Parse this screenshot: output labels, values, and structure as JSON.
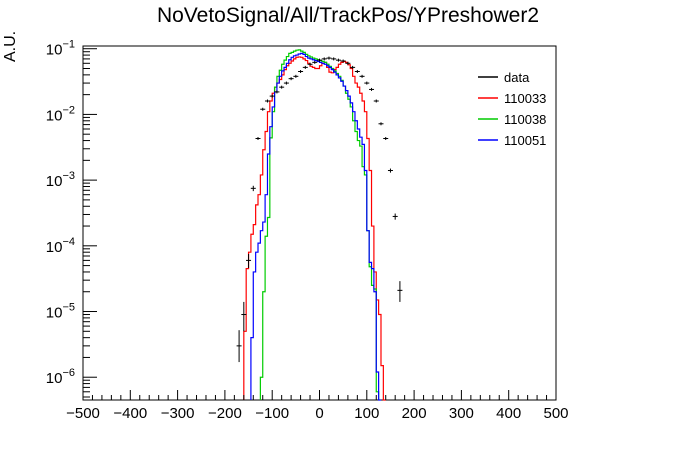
{
  "chart_data": {
    "type": "line",
    "title": "NoVetoSignal/All/TrackPos/YPreshower2",
    "xlabel": "",
    "ylabel": "A.U.",
    "xlim": [
      -500,
      500
    ],
    "ylim": [
      4.5e-07,
      0.11
    ],
    "y_scale": "log",
    "legend_position": "top-right",
    "x_ticks": [
      -500,
      -400,
      -300,
      -200,
      -100,
      0,
      100,
      200,
      300,
      400,
      500
    ],
    "x_tick_labels": [
      "−500",
      "−400",
      "−300",
      "−200",
      "−100",
      "0",
      "100",
      "200",
      "300",
      "400",
      "500"
    ],
    "y_ticks": [
      1e-06,
      1e-05,
      0.0001,
      0.001,
      0.01,
      0.1
    ],
    "y_tick_labels": [
      "10^-6",
      "10^-5",
      "10^-4",
      "10^-3",
      "10^-2",
      "10^-1"
    ],
    "colors": {
      "data": "#000000",
      "110033": "#ff0000",
      "110038": "#00cc00",
      "110051": "#0000ff"
    },
    "series": [
      {
        "name": "data",
        "style": "points",
        "x": [
          -170,
          -160,
          -150,
          -140,
          -130,
          -120,
          -110,
          -100,
          -90,
          -80,
          -70,
          -60,
          -50,
          -40,
          -30,
          -20,
          -10,
          0,
          10,
          20,
          30,
          40,
          50,
          60,
          70,
          80,
          90,
          100,
          110,
          120,
          130,
          140,
          150,
          160,
          170
        ],
        "y": [
          3e-06,
          9e-06,
          6e-05,
          0.00075,
          0.0043,
          0.012,
          0.016,
          0.019,
          0.022,
          0.026,
          0.03,
          0.035,
          0.038,
          0.045,
          0.052,
          0.058,
          0.062,
          0.067,
          0.07,
          0.072,
          0.07,
          0.067,
          0.065,
          0.06,
          0.052,
          0.045,
          0.038,
          0.03,
          0.024,
          0.016,
          0.0072,
          0.0043,
          0.0014,
          0.00028,
          2.1e-05
        ],
        "err_low": [
          1.3e-06,
          4e-06,
          1.4e-05,
          7e-05,
          0.0002,
          0.0003,
          0.0004,
          0.0004,
          0.0005,
          0.0005,
          0.0005,
          0.0006,
          0.0006,
          0.0006,
          0.0007,
          0.0007,
          0.0007,
          0.0007,
          0.0008,
          0.0008,
          0.0008,
          0.0007,
          0.0007,
          0.0007,
          0.0007,
          0.0006,
          0.0006,
          0.0005,
          0.0005,
          0.0004,
          0.0003,
          0.0002,
          0.0001,
          3e-05,
          7e-06
        ],
        "err_high": [
          2.2e-06,
          5e-06,
          1.5e-05,
          7e-05,
          0.0002,
          0.0003,
          0.0004,
          0.0004,
          0.0005,
          0.0005,
          0.0005,
          0.0006,
          0.0006,
          0.0006,
          0.0007,
          0.0007,
          0.0007,
          0.0007,
          0.0008,
          0.0008,
          0.0008,
          0.0007,
          0.0007,
          0.0007,
          0.0007,
          0.0006,
          0.0006,
          0.0005,
          0.0005,
          0.0004,
          0.0003,
          0.0002,
          0.0001,
          3e-05,
          8e-06
        ]
      },
      {
        "name": "110033",
        "style": "step",
        "edges": [
          -160,
          -155,
          -150,
          -145,
          -140,
          -135,
          -130,
          -125,
          -120,
          -115,
          -110,
          -105,
          -100,
          -95,
          -90,
          -85,
          -80,
          -75,
          -70,
          -65,
          -60,
          -55,
          -50,
          -45,
          -40,
          -35,
          -30,
          -25,
          -20,
          -15,
          -10,
          -5,
          0,
          5,
          10,
          15,
          20,
          25,
          30,
          35,
          40,
          45,
          50,
          55,
          60,
          65,
          70,
          75,
          80,
          85,
          90,
          95,
          100,
          105,
          110,
          115,
          120,
          125,
          130,
          135,
          140
        ],
        "values": [
          5e-06,
          4.5e-05,
          8e-05,
          0.00015,
          0.00021,
          0.00042,
          0.0006,
          0.0012,
          0.0029,
          0.0055,
          0.011,
          0.016,
          0.021,
          0.026,
          0.03,
          0.034,
          0.04,
          0.048,
          0.055,
          0.06,
          0.065,
          0.07,
          0.074,
          0.075,
          0.074,
          0.07,
          0.066,
          0.06,
          0.054,
          0.052,
          0.05,
          0.05,
          0.055,
          0.06,
          0.062,
          0.052,
          0.044,
          0.043,
          0.048,
          0.052,
          0.058,
          0.062,
          0.064,
          0.062,
          0.057,
          0.05,
          0.038,
          0.03,
          0.026,
          0.021,
          0.016,
          0.011,
          0.0043,
          0.0014,
          0.0002,
          4e-05,
          1.5e-05,
          9e-06,
          1.5e-06,
          3e-07
        ]
      },
      {
        "name": "110038",
        "style": "step",
        "edges": [
          -125,
          -120,
          -115,
          -110,
          -105,
          -100,
          -95,
          -90,
          -85,
          -80,
          -75,
          -70,
          -65,
          -60,
          -55,
          -50,
          -45,
          -40,
          -35,
          -30,
          -25,
          -20,
          -15,
          -10,
          -5,
          0,
          5,
          10,
          15,
          20,
          25,
          30,
          35,
          40,
          45,
          50,
          55,
          60,
          65,
          70,
          75,
          80,
          85,
          90,
          95,
          100,
          105,
          110,
          115,
          120,
          125
        ],
        "values": [
          1e-06,
          2e-05,
          0.00014,
          0.00027,
          0.0044,
          0.011,
          0.026,
          0.038,
          0.047,
          0.058,
          0.067,
          0.076,
          0.085,
          0.088,
          0.092,
          0.095,
          0.096,
          0.092,
          0.088,
          0.082,
          0.078,
          0.075,
          0.072,
          0.07,
          0.068,
          0.066,
          0.064,
          0.062,
          0.058,
          0.054,
          0.05,
          0.046,
          0.042,
          0.038,
          0.033,
          0.027,
          0.021,
          0.017,
          0.013,
          0.008,
          0.0055,
          0.004,
          0.0033,
          0.0016,
          0.0012,
          0.00017,
          4.8e-05,
          2.5e-05,
          2.2e-05,
          6e-07
        ]
      },
      {
        "name": "110051",
        "style": "step",
        "edges": [
          -145,
          -140,
          -135,
          -130,
          -125,
          -120,
          -115,
          -110,
          -105,
          -100,
          -95,
          -90,
          -85,
          -80,
          -75,
          -70,
          -65,
          -60,
          -55,
          -50,
          -45,
          -40,
          -35,
          -30,
          -25,
          -20,
          -15,
          -10,
          -5,
          0,
          5,
          10,
          15,
          20,
          25,
          30,
          35,
          40,
          45,
          50,
          55,
          60,
          65,
          70,
          75,
          80,
          85,
          90,
          95,
          100,
          105,
          110,
          115,
          120,
          125,
          130
        ],
        "values": [
          4e-06,
          4e-05,
          8e-05,
          0.00011,
          0.00017,
          0.00023,
          0.0006,
          0.0025,
          0.0065,
          0.013,
          0.022,
          0.03,
          0.038,
          0.046,
          0.052,
          0.06,
          0.068,
          0.074,
          0.078,
          0.08,
          0.083,
          0.085,
          0.082,
          0.076,
          0.072,
          0.07,
          0.068,
          0.066,
          0.064,
          0.062,
          0.06,
          0.058,
          0.055,
          0.052,
          0.048,
          0.044,
          0.04,
          0.036,
          0.032,
          0.027,
          0.023,
          0.019,
          0.015,
          0.011,
          0.008,
          0.006,
          0.0045,
          0.0035,
          0.0014,
          0.00017,
          5.6e-05,
          4.5e-05,
          2e-05,
          1.2e-06,
          4e-07
        ]
      }
    ]
  }
}
